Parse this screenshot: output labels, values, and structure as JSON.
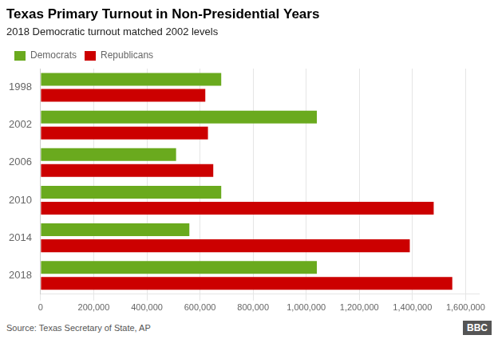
{
  "chart_data": {
    "type": "bar",
    "orientation": "horizontal",
    "title": "Texas Primary Turnout in Non-Presidential Years",
    "subtitle": "2018 Democratic turnout matched 2002 levels",
    "annotations": [
      "Source: Texas Secretary of State, AP",
      "BBC"
    ],
    "categories": [
      "1998",
      "2002",
      "2006",
      "2010",
      "2014",
      "2018"
    ],
    "series": [
      {
        "name": "Democrats",
        "color": "#6aaa1e",
        "values": [
          680000,
          1040000,
          510000,
          680000,
          560000,
          1040000
        ]
      },
      {
        "name": "Republicans",
        "color": "#cc0000",
        "values": [
          620000,
          630000,
          650000,
          1480000,
          1390000,
          1550000
        ]
      }
    ],
    "xlim": [
      0,
      1650000
    ],
    "xticks": [
      0,
      {
        "value": 200000,
        "label": "200,000"
      },
      {
        "value": 400000,
        "label": "400,000"
      },
      {
        "value": 600000,
        "label": "600,000"
      },
      {
        "value": 800000,
        "label": "800,000"
      },
      {
        "value": 1000000,
        "label": "1,000,000"
      },
      {
        "value": 1200000,
        "label": "1,200,000"
      },
      {
        "value": 1400000,
        "label": "1,400,000"
      },
      {
        "value": 1600000,
        "label": "1,600,000"
      }
    ],
    "grid": true,
    "legend": "top left"
  }
}
